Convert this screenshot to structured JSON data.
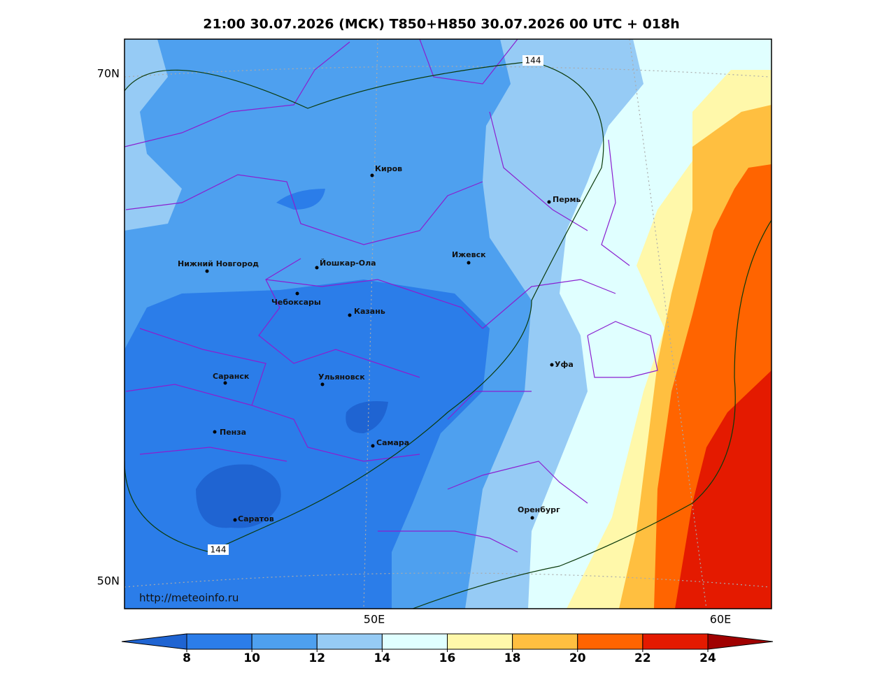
{
  "title": "21:00 30.07.2026 (МСК) T850+H850 30.07.2026 00 UTC + 018h",
  "map": {
    "lat_labels": [
      "70N",
      "50N"
    ],
    "lon_labels": [
      "50E",
      "60E"
    ],
    "contour_labels": [
      "144",
      "144"
    ],
    "cities": [
      "Киров",
      "Пермь",
      "Нижний Новгород",
      "Йошкар-Ола",
      "Ижевск",
      "Чебоксары",
      "Казань",
      "Уфа",
      "Саранск",
      "Ульяновск",
      "Пенза",
      "Самара",
      "Оренбург",
      "Саратов"
    ],
    "credit": "http://meteoinfo.ru"
  },
  "colorbar": {
    "ticks": [
      8,
      10,
      12,
      14,
      16,
      18,
      20,
      22,
      24
    ],
    "colors": [
      "#1f64d2",
      "#2b7de9",
      "#4ea0ef",
      "#96cbf5",
      "#e0ffff",
      "#fff8aa",
      "#ffbf40",
      "#ff6400",
      "#e41a00",
      "#a00000"
    ]
  }
}
